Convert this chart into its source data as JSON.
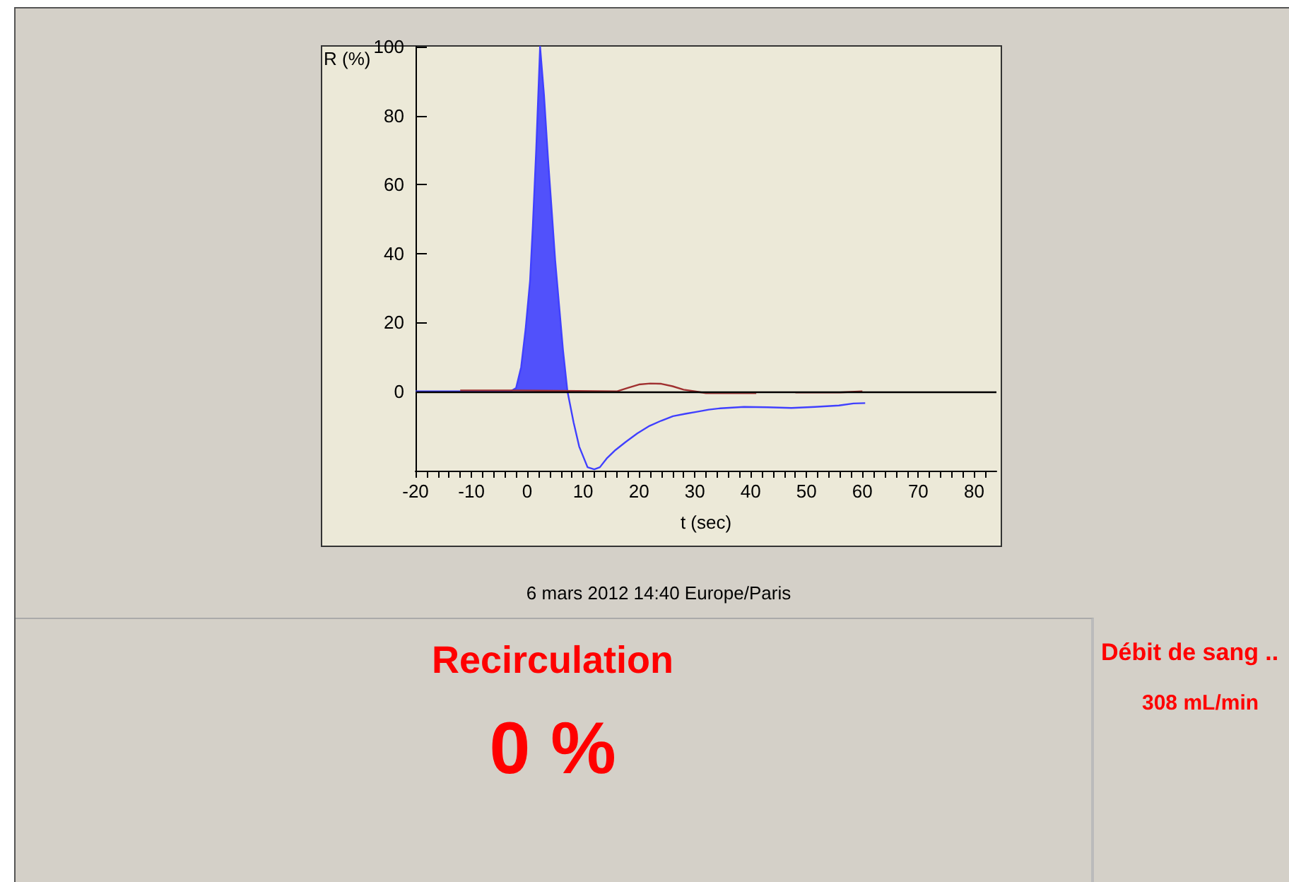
{
  "chart_data": {
    "type": "line",
    "xlabel": "t (sec)",
    "ylabel": "R (%)",
    "xlim": [
      -20,
      84
    ],
    "ylim": [
      -23,
      100
    ],
    "xticks": [
      -20,
      {
        "value": -18,
        "label": null
      },
      {
        "value": -16,
        "label": null
      },
      {
        "value": -14,
        "label": null
      },
      {
        "value": -12,
        "label": null
      },
      -10,
      {
        "value": -8,
        "label": null
      },
      {
        "value": -6,
        "label": null
      },
      {
        "value": -4,
        "label": null
      },
      {
        "value": -2,
        "label": null
      },
      0,
      {
        "value": 2,
        "label": null
      },
      {
        "value": 4,
        "label": null
      },
      {
        "value": 6,
        "label": null
      },
      {
        "value": 8,
        "label": null
      },
      10,
      {
        "value": 12,
        "label": null
      },
      {
        "value": 14,
        "label": null
      },
      {
        "value": 16,
        "label": null
      },
      {
        "value": 18,
        "label": null
      },
      20,
      {
        "value": 22,
        "label": null
      },
      {
        "value": 24,
        "label": null
      },
      {
        "value": 26,
        "label": null
      },
      {
        "value": 28,
        "label": null
      },
      30,
      {
        "value": 32,
        "label": null
      },
      {
        "value": 34,
        "label": null
      },
      {
        "value": 36,
        "label": null
      },
      {
        "value": 38,
        "label": null
      },
      40,
      {
        "value": 42,
        "label": null
      },
      {
        "value": 44,
        "label": null
      },
      {
        "value": 46,
        "label": null
      },
      {
        "value": 48,
        "label": null
      },
      50,
      {
        "value": 52,
        "label": null
      },
      {
        "value": 54,
        "label": null
      },
      {
        "value": 56,
        "label": null
      },
      {
        "value": 58,
        "label": null
      },
      60,
      {
        "value": 62,
        "label": null
      },
      {
        "value": 64,
        "label": null
      },
      {
        "value": 66,
        "label": null
      },
      {
        "value": 68,
        "label": null
      },
      70,
      {
        "value": 72,
        "label": null
      },
      {
        "value": 74,
        "label": null
      },
      {
        "value": 76,
        "label": null
      },
      {
        "value": 78,
        "label": null
      },
      80,
      {
        "value": 82,
        "label": null
      }
    ],
    "yticks": [
      0,
      20,
      40,
      60,
      80,
      100
    ],
    "series": [
      {
        "type": "area",
        "color": "#4040ff",
        "x": [
          -20,
          -10,
          -3,
          -2,
          -1.1,
          -0.3,
          0.5,
          1,
          1.6,
          2.3,
          3,
          3.7,
          4.4,
          5,
          5.7,
          6.4,
          7.2
        ],
        "values": [
          0,
          0,
          0,
          1,
          7,
          18,
          32,
          48,
          70,
          100,
          86,
          68,
          52,
          38,
          25,
          12,
          0
        ]
      },
      {
        "color": "#4040ff",
        "x": [
          7.2,
          8.3,
          9.3,
          10.8,
          12,
          13,
          14.2,
          15.8,
          17.6,
          19.7,
          21.9,
          24,
          26.1,
          28.3,
          30.4,
          32.5,
          34.6,
          38.8,
          43,
          47.3,
          51.5,
          55.8,
          58.4,
          60.5
        ],
        "values": [
          0,
          -9,
          -16,
          -22,
          -22.6,
          -22,
          -19.5,
          -17,
          -14.7,
          -12.2,
          -10,
          -8.5,
          -7.2,
          -6.5,
          -5.9,
          -5.3,
          -4.9,
          -4.5,
          -4.6,
          -4.8,
          -4.5,
          -4.1,
          -3.5,
          -3.4
        ]
      },
      {
        "color": "#a03030",
        "x": [
          -12,
          -8,
          -4,
          -3,
          16,
          18,
          20,
          22,
          24,
          26,
          28,
          30,
          32,
          36,
          41,
          45,
          48,
          52,
          56,
          60
        ],
        "values": [
          0.3,
          0.3,
          0.3,
          0.3,
          0,
          1,
          2,
          2.3,
          2.2,
          1.5,
          0.5,
          0,
          -0.5,
          -0.5,
          -0.5,
          null,
          -0.3,
          -0.3,
          -0.3,
          0
        ]
      }
    ],
    "ref_lines": [
      {
        "axis": "y",
        "value": 0,
        "color": "#000000"
      }
    ],
    "grid": false,
    "marker": "none",
    "line_style": "solid",
    "annotations": [
      "6 mars 2012 14:40 Europe/Paris",
      "Recirculation",
      "0 %",
      "Débit de sang ..",
      "308 mL/min"
    ]
  }
}
